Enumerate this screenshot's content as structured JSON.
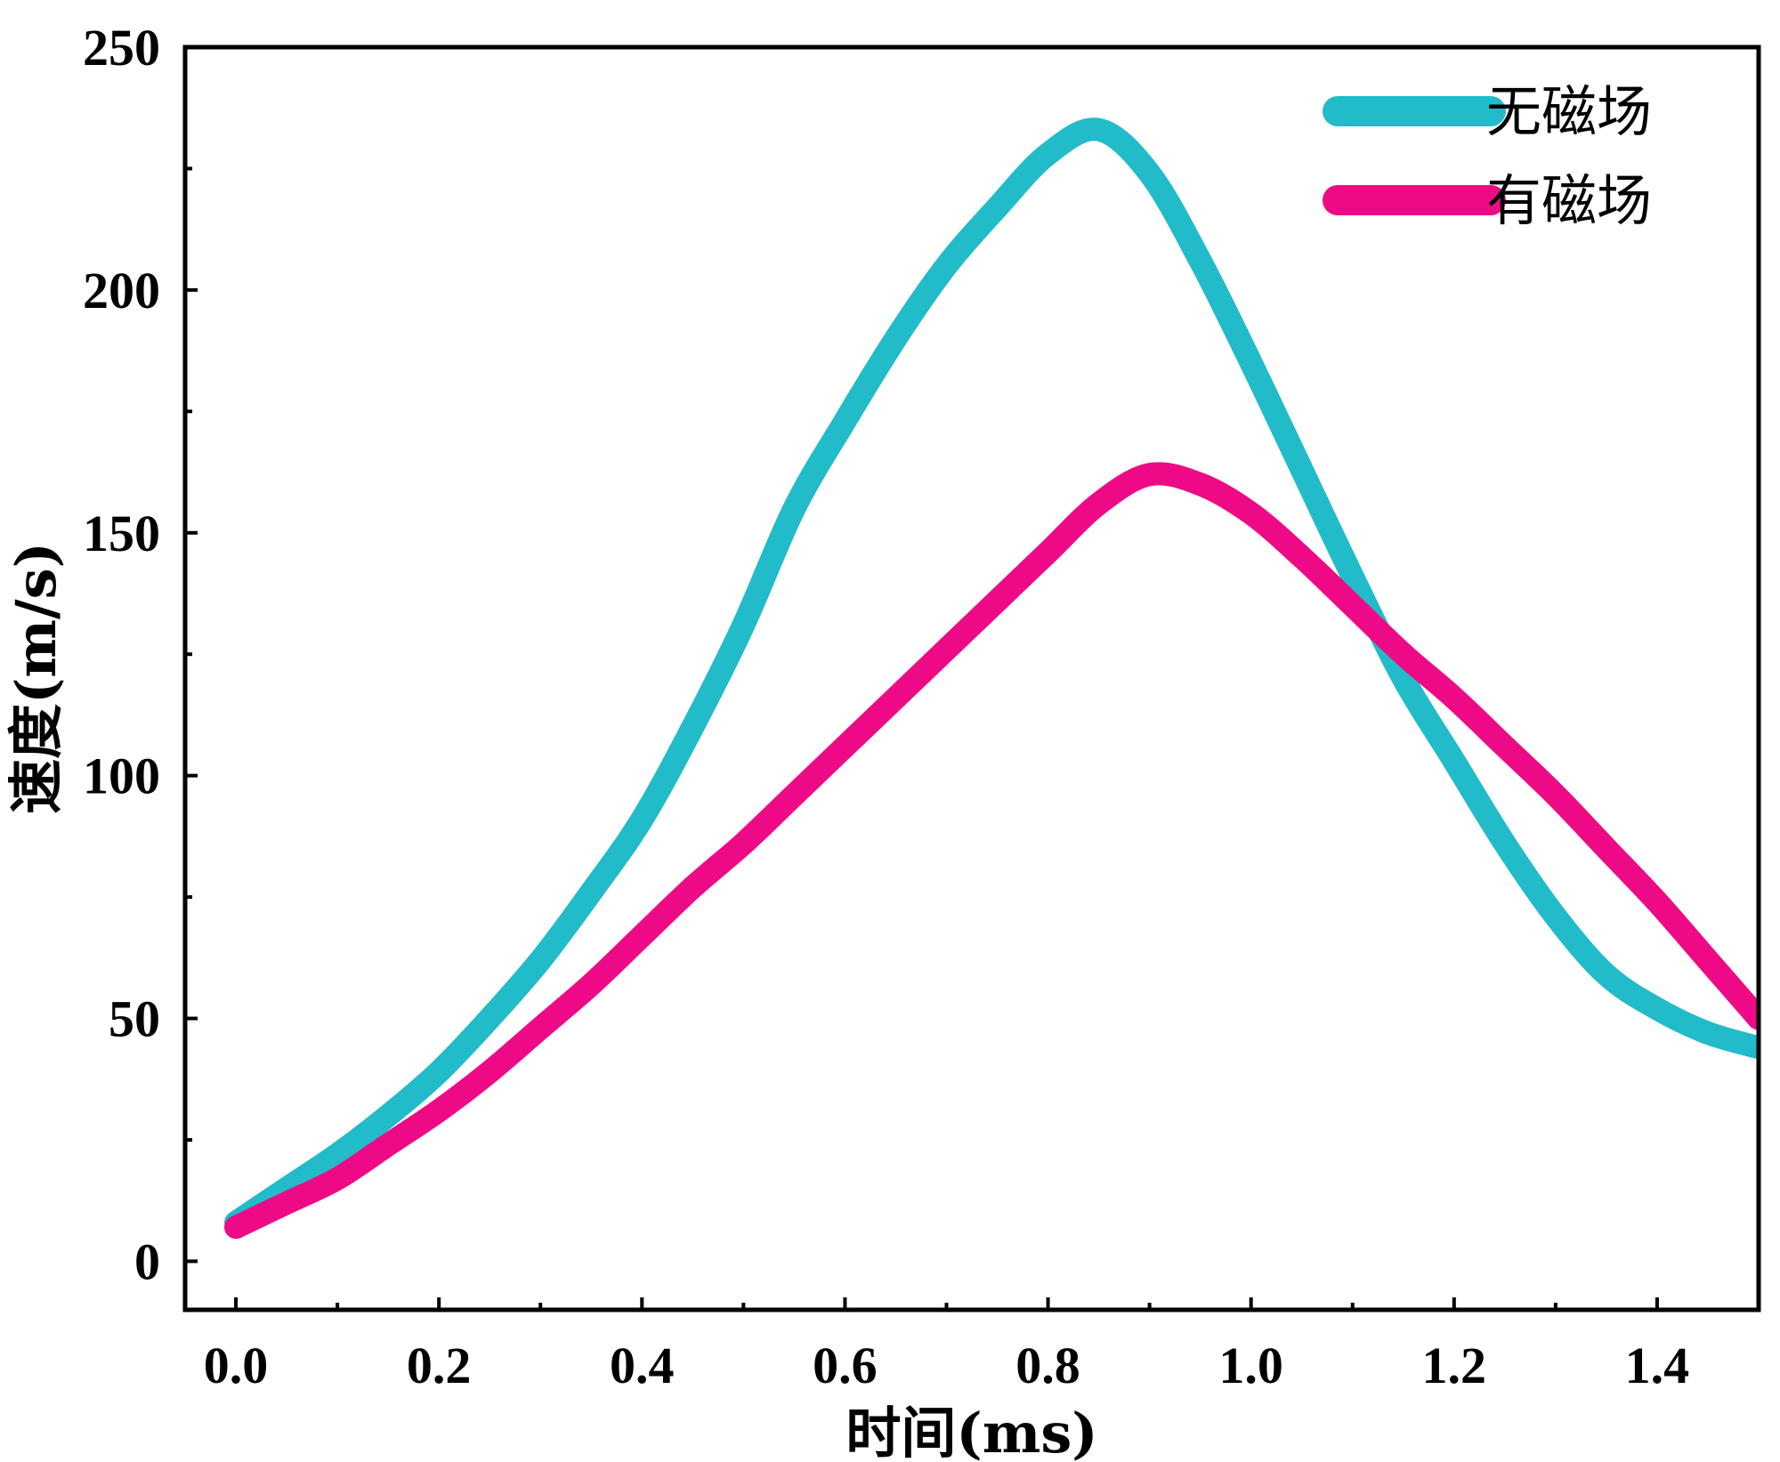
{
  "chart_data": {
    "type": "line",
    "title": "",
    "xlabel": "时间(ms)",
    "ylabel": "速度(m/s)",
    "xlim": [
      -0.05,
      1.5
    ],
    "ylim": [
      -10,
      250
    ],
    "xticks": [
      0.0,
      0.2,
      0.4,
      0.6,
      0.8,
      1.0,
      1.2,
      1.4
    ],
    "xtick_labels": [
      "0.0",
      "0.2",
      "0.4",
      "0.6",
      "0.8",
      "1.0",
      "1.2",
      "1.4"
    ],
    "yticks": [
      0,
      50,
      100,
      150,
      200,
      250
    ],
    "ytick_labels": [
      "0",
      "50",
      "100",
      "150",
      "200",
      "250"
    ],
    "grid": false,
    "legend_position": "top-right",
    "series": [
      {
        "name": "无磁场",
        "color": "#22BBC9",
        "x": [
          0.0,
          0.05,
          0.1,
          0.15,
          0.2,
          0.25,
          0.3,
          0.35,
          0.4,
          0.45,
          0.5,
          0.55,
          0.6,
          0.65,
          0.7,
          0.75,
          0.8,
          0.85,
          0.9,
          0.95,
          1.0,
          1.05,
          1.1,
          1.15,
          1.2,
          1.25,
          1.3,
          1.35,
          1.4,
          1.45,
          1.5
        ],
        "y": [
          8,
          15,
          22,
          30,
          39,
          50,
          62,
          76,
          91,
          110,
          131,
          155,
          173,
          190,
          205,
          217,
          228,
          233,
          224,
          206,
          185,
          163,
          141,
          120,
          103,
          86,
          71,
          59,
          52,
          47,
          44
        ]
      },
      {
        "name": "有磁场",
        "color": "#EE0A86",
        "x": [
          0.0,
          0.05,
          0.1,
          0.15,
          0.2,
          0.25,
          0.3,
          0.35,
          0.4,
          0.45,
          0.5,
          0.55,
          0.6,
          0.65,
          0.7,
          0.75,
          0.8,
          0.85,
          0.9,
          0.95,
          1.0,
          1.05,
          1.1,
          1.15,
          1.2,
          1.25,
          1.3,
          1.35,
          1.4,
          1.45,
          1.5
        ],
        "y": [
          7,
          12,
          17,
          24,
          31,
          39,
          48,
          57,
          67,
          77,
          86,
          96,
          106,
          116,
          126,
          136,
          146,
          156,
          162,
          160,
          154,
          145,
          135,
          125,
          116,
          106,
          96,
          85,
          74,
          62,
          50
        ]
      }
    ]
  }
}
